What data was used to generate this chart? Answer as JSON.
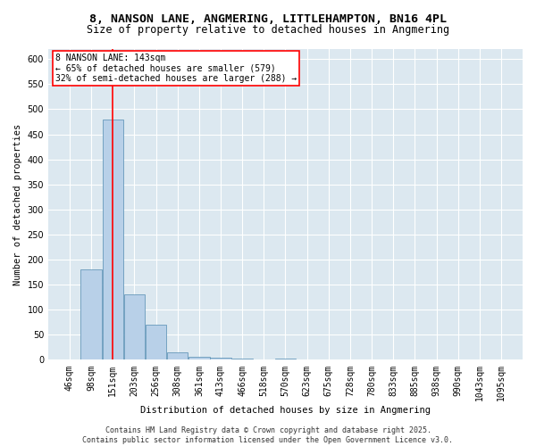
{
  "title_line1": "8, NANSON LANE, ANGMERING, LITTLEHAMPTON, BN16 4PL",
  "title_line2": "Size of property relative to detached houses in Angmering",
  "xlabel": "Distribution of detached houses by size in Angmering",
  "ylabel": "Number of detached properties",
  "bar_color": "#b8d0e8",
  "bar_edge_color": "#6699bb",
  "bg_color": "#dce8f0",
  "grid_color": "#ffffff",
  "annotation_text": "8 NANSON LANE: 143sqm\n← 65% of detached houses are smaller (579)\n32% of semi-detached houses are larger (288) →",
  "vline_x": 151,
  "vline_color": "red",
  "categories": [
    46,
    98,
    151,
    203,
    256,
    308,
    361,
    413,
    466,
    518,
    570,
    623,
    675,
    728,
    780,
    833,
    885,
    938,
    990,
    1043,
    1095
  ],
  "values": [
    0,
    180,
    480,
    130,
    70,
    15,
    7,
    5,
    3,
    0,
    3,
    0,
    0,
    0,
    0,
    0,
    0,
    0,
    0,
    0,
    0
  ],
  "ylim": [
    0,
    620
  ],
  "yticks": [
    0,
    50,
    100,
    150,
    200,
    250,
    300,
    350,
    400,
    450,
    500,
    550,
    600
  ],
  "bin_width": 52,
  "footnote": "Contains HM Land Registry data © Crown copyright and database right 2025.\nContains public sector information licensed under the Open Government Licence v3.0.",
  "title_fontsize": 9.5,
  "subtitle_fontsize": 8.5,
  "axis_label_fontsize": 7.5,
  "tick_fontsize": 7,
  "annotation_fontsize": 7,
  "footnote_fontsize": 6
}
